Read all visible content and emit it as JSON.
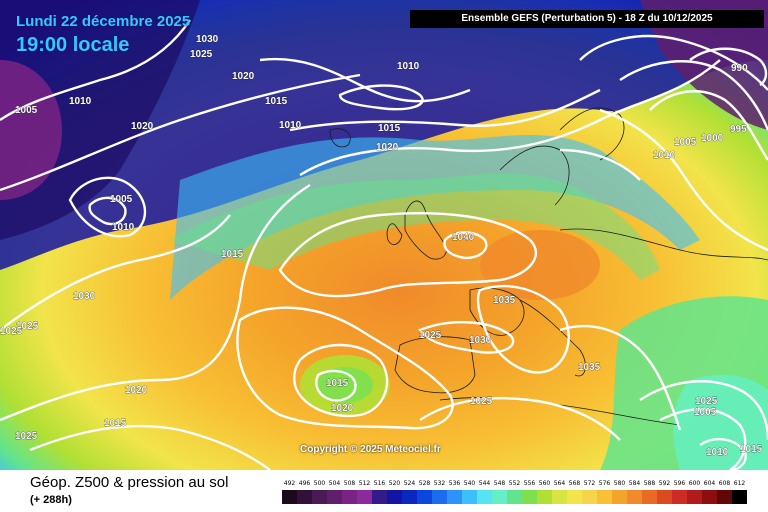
{
  "header": {
    "date_line": "Lundi 22 décembre 2025",
    "time_line": "19:00 locale",
    "run_info": "Ensemble GEFS  (Perturbation 5)  -  18 Z du 10/12/2025"
  },
  "footer": {
    "title": "Géop. Z500 & pression au sol",
    "subtitle": "(+ 288h)",
    "copyright": "Copyright © 2025 Meteociel.fr"
  },
  "isobar_labels": [
    "1030",
    "1025",
    "1020",
    "1015",
    "1010",
    "1005",
    "1010",
    "1020",
    "1010",
    "1015",
    "1020",
    "1005",
    "1010",
    "1015",
    "1030",
    "1025",
    "1020",
    "1015",
    "1025",
    "1040",
    "1035",
    "1025",
    "1030",
    "1015",
    "1020",
    "1025",
    "1035",
    "1010",
    "1005",
    "1000",
    "995",
    "990",
    "1025",
    "1010",
    "1015",
    "1025",
    "1005"
  ],
  "legend": {
    "values": [
      "492",
      "496",
      "500",
      "504",
      "508",
      "512",
      "516",
      "520",
      "524",
      "528",
      "532",
      "536",
      "540",
      "544",
      "548",
      "552",
      "556",
      "560",
      "564",
      "568",
      "572",
      "576",
      "580",
      "584",
      "588",
      "592",
      "596",
      "600",
      "604",
      "608",
      "612"
    ],
    "colors": [
      "#1c0a1c",
      "#32103a",
      "#4a1a54",
      "#601f6c",
      "#7a2384",
      "#8c2a9c",
      "#321c8c",
      "#1414a4",
      "#0a28c0",
      "#0a46e0",
      "#1c6cf0",
      "#2c94f8",
      "#3cc0fc",
      "#56e4f4",
      "#64f0c4",
      "#62e48c",
      "#7ce050",
      "#b0e034",
      "#d8e440",
      "#f2e44a",
      "#f8d44a",
      "#f8c034",
      "#f4a42a",
      "#f08a2a",
      "#e86a24",
      "#dc4a20",
      "#cc2c24",
      "#b01c1c",
      "#8c0e0e",
      "#600808",
      "#000000"
    ]
  }
}
